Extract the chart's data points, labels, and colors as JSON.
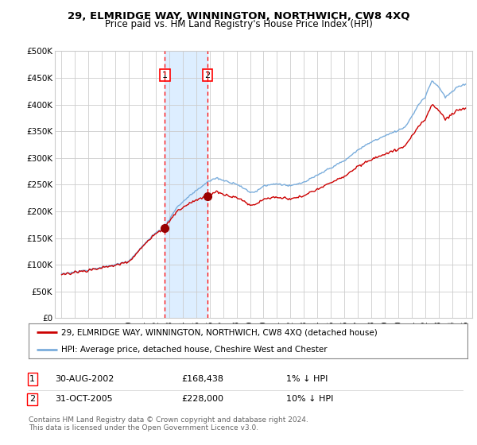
{
  "title": "29, ELMRIDGE WAY, WINNINGTON, NORTHWICH, CW8 4XQ",
  "subtitle": "Price paid vs. HM Land Registry's House Price Index (HPI)",
  "legend_line1": "29, ELMRIDGE WAY, WINNINGTON, NORTHWICH, CW8 4XQ (detached house)",
  "legend_line2": "HPI: Average price, detached house, Cheshire West and Chester",
  "footnote1": "Contains HM Land Registry data © Crown copyright and database right 2024.",
  "footnote2": "This data is licensed under the Open Government Licence v3.0.",
  "sale1_date": "30-AUG-2002",
  "sale1_price": 168438,
  "sale1_pct": "1% ↓ HPI",
  "sale2_date": "31-OCT-2005",
  "sale2_price": 228000,
  "sale2_pct": "10% ↓ HPI",
  "sale1_x": 2002.67,
  "sale2_x": 2005.83,
  "hpi_line_color": "#7aaddc",
  "price_line_color": "#cc0000",
  "shade_color": "#ddeeff",
  "grid_color": "#cccccc",
  "bg_color": "#ffffff",
  "ylim_min": 0,
  "ylim_max": 500000,
  "xlim_min": 1994.5,
  "xlim_max": 2025.5
}
